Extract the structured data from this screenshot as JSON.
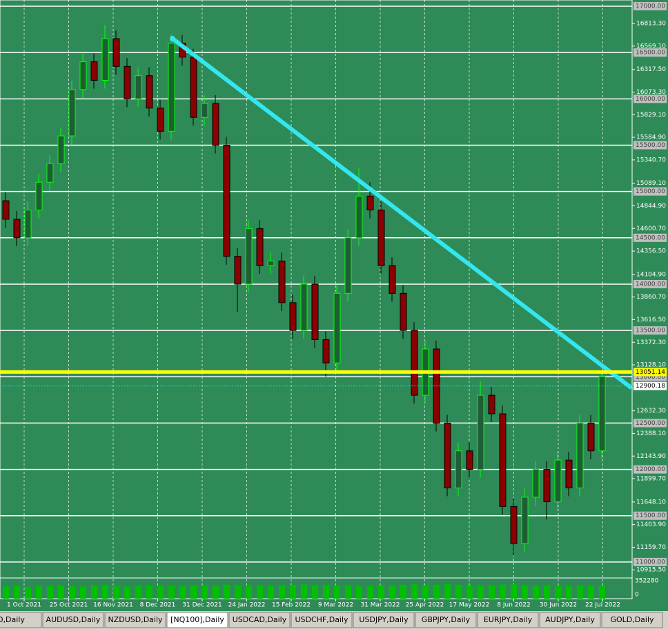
{
  "chart_data": {
    "type": "candlestick",
    "ylim": [
      10828,
      17067
    ],
    "yticks": [
      {
        "value": 16813.3,
        "label": "16813.30"
      },
      {
        "value": 16569.1,
        "label": "16569.10"
      },
      {
        "value": 16317.5,
        "label": "16317.50"
      },
      {
        "value": 16073.3,
        "label": "16073.30"
      },
      {
        "value": 15829.1,
        "label": "15829.10"
      },
      {
        "value": 15584.9,
        "label": "15584.90"
      },
      {
        "value": 15340.7,
        "label": "15340.70"
      },
      {
        "value": 15089.1,
        "label": "15089.10"
      },
      {
        "value": 14844.9,
        "label": "14844.90"
      },
      {
        "value": 14600.7,
        "label": "14600.70"
      },
      {
        "value": 14356.5,
        "label": "14356.50"
      },
      {
        "value": 14104.9,
        "label": "14104.90"
      },
      {
        "value": 13860.7,
        "label": "13860.70"
      },
      {
        "value": 13616.5,
        "label": "13616.50"
      },
      {
        "value": 13372.3,
        "label": "13372.30"
      },
      {
        "value": 13128.1,
        "label": "13128.10"
      },
      {
        "value": 12632.3,
        "label": "12632.30"
      },
      {
        "value": 12388.1,
        "label": "12388.10"
      },
      {
        "value": 12143.9,
        "label": "12143.90"
      },
      {
        "value": 11899.7,
        "label": "11899.70"
      },
      {
        "value": 11648.1,
        "label": "11648.10"
      },
      {
        "value": 11403.9,
        "label": "11403.90"
      },
      {
        "value": 11159.7,
        "label": "11159.70"
      },
      {
        "value": 10915.5,
        "label": "10915.50"
      }
    ],
    "levels": [
      {
        "value": 17000,
        "label": "17000.00"
      },
      {
        "value": 16500,
        "label": "16500.00"
      },
      {
        "value": 16000,
        "label": "16000.00"
      },
      {
        "value": 15500,
        "label": "15500.00"
      },
      {
        "value": 15000,
        "label": "15000.00"
      },
      {
        "value": 14500,
        "label": "14500.00"
      },
      {
        "value": 14000,
        "label": "14000.00"
      },
      {
        "value": 13500,
        "label": "13500.00"
      },
      {
        "value": 13000,
        "label": "13000.00"
      },
      {
        "value": 12500,
        "label": "12500.00"
      },
      {
        "value": 12000,
        "label": "12000.00"
      },
      {
        "value": 11500,
        "label": "11500.00"
      },
      {
        "value": 11000,
        "label": "11000.00"
      }
    ],
    "resistance": {
      "value": 13051.14,
      "label": "13051.14",
      "color": "#ffff00"
    },
    "bid": {
      "value": 12900.18,
      "label": "12900.18",
      "color": "#00e5e5"
    },
    "trendline": {
      "start": 16650,
      "end": 12880,
      "color": "#33e6f0"
    },
    "up_color": "#00ff00",
    "down_color": "#8b0000",
    "candles": [
      [
        14900,
        14990,
        14610,
        14700
      ],
      [
        14700,
        14790,
        14410,
        14500
      ],
      [
        14500,
        14890,
        14410,
        14800
      ],
      [
        14800,
        15190,
        14710,
        15100
      ],
      [
        15100,
        15390,
        15010,
        15300
      ],
      [
        15300,
        15690,
        15210,
        15600
      ],
      [
        15600,
        16190,
        15510,
        16100
      ],
      [
        16100,
        16490,
        16010,
        16400
      ],
      [
        16400,
        16490,
        16110,
        16200
      ],
      [
        16200,
        16800,
        16110,
        16650
      ],
      [
        16650,
        16740,
        16260,
        16350
      ],
      [
        16350,
        16440,
        15910,
        16000
      ],
      [
        16000,
        16340,
        15910,
        16250
      ],
      [
        16250,
        16340,
        15810,
        15900
      ],
      [
        15900,
        15990,
        15560,
        15650
      ],
      [
        15650,
        16700,
        15560,
        16600
      ],
      [
        16600,
        16690,
        16360,
        16450
      ],
      [
        16450,
        16540,
        15710,
        15800
      ],
      [
        15800,
        16040,
        15710,
        15950
      ],
      [
        15950,
        16040,
        15410,
        15500
      ],
      [
        15500,
        15590,
        14210,
        14300
      ],
      [
        14300,
        14390,
        13700,
        14000
      ],
      [
        14000,
        14690,
        13910,
        14600
      ],
      [
        14600,
        14690,
        14110,
        14200
      ],
      [
        14200,
        14340,
        14110,
        14250
      ],
      [
        14250,
        14340,
        13710,
        13800
      ],
      [
        13800,
        13890,
        13410,
        13500
      ],
      [
        13500,
        14090,
        13410,
        14000
      ],
      [
        14000,
        14090,
        13310,
        13400
      ],
      [
        13400,
        13490,
        13000,
        13150
      ],
      [
        13150,
        13990,
        13060,
        13900
      ],
      [
        13900,
        14590,
        13810,
        14500
      ],
      [
        14500,
        15250,
        14410,
        14950
      ],
      [
        14950,
        15100,
        14710,
        14800
      ],
      [
        14800,
        14890,
        14110,
        14200
      ],
      [
        14200,
        14290,
        13810,
        13900
      ],
      [
        13900,
        13990,
        13410,
        13500
      ],
      [
        13500,
        13590,
        12710,
        12800
      ],
      [
        12800,
        13390,
        12710,
        13300
      ],
      [
        13300,
        13390,
        12410,
        12500
      ],
      [
        12500,
        12590,
        11710,
        11800
      ],
      [
        11800,
        12290,
        11710,
        12200
      ],
      [
        12200,
        12290,
        11910,
        12000
      ],
      [
        12000,
        12950,
        11910,
        12800
      ],
      [
        12800,
        12890,
        12510,
        12600
      ],
      [
        12600,
        12690,
        11510,
        11600
      ],
      [
        11600,
        11690,
        11070,
        11200
      ],
      [
        11200,
        11790,
        11110,
        11700
      ],
      [
        11700,
        12090,
        11610,
        12000
      ],
      [
        12000,
        12090,
        11460,
        11650
      ],
      [
        11650,
        12190,
        11560,
        12100
      ],
      [
        12100,
        12190,
        11710,
        11800
      ],
      [
        11800,
        12590,
        11710,
        12500
      ],
      [
        12500,
        12590,
        12110,
        12200
      ],
      [
        12200,
        13050,
        12110,
        13000
      ]
    ],
    "volume": [
      240000,
      250000,
      230000,
      260000,
      245000,
      255000,
      250000,
      240000,
      260000,
      270000,
      250000,
      240000,
      255000,
      260000,
      250000,
      245000,
      250000,
      265000,
      255000,
      260000,
      275000,
      270000,
      265000,
      260000,
      250000,
      265000,
      270000,
      275000,
      260000,
      270000,
      265000,
      255000,
      250000,
      245000,
      260000,
      265000,
      270000,
      280000,
      265000,
      275000,
      285000,
      270000,
      260000,
      265000,
      255000,
      275000,
      280000,
      265000,
      255000,
      260000,
      250000,
      245000,
      255000,
      250000,
      260000
    ],
    "volume_ylim": [
      0,
      352280
    ],
    "volume_ticks": [
      352280,
      0
    ],
    "xticks": [
      "1 Oct 2021",
      "25 Oct 2021",
      "16 Nov 2021",
      "8 Dec 2021",
      "31 Dec 2021",
      "24 Jan 2022",
      "15 Feb 2022",
      "9 Mar 2022",
      "31 Mar 2022",
      "25 Apr 2022",
      "17 May 2022",
      "8 Jun 2022",
      "30 Jun 2022",
      "22 Jul 2022"
    ],
    "tabs": [
      "D,Daily",
      "AUDUSD,Daily",
      "NZDUSD,Daily",
      "[NQ100],Daily",
      "USDCAD,Daily",
      "USDCHF,Daily",
      "USDJPY,Daily",
      "GBPJPY,Daily",
      "EURJPY,Daily",
      "AUDJPY,Daily",
      "GOLD,Daily"
    ],
    "active_tab": "[NQ100],Daily"
  }
}
